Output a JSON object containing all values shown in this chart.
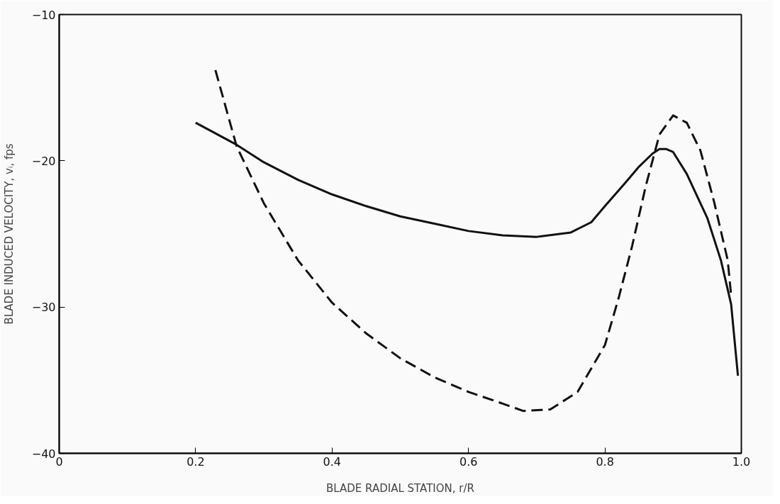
{
  "chart_data": {
    "type": "line",
    "xlabel": "BLADE RADIAL STATION, r/R",
    "ylabel": "BLADE INDUCED VELOCITY, vᵢ, fps",
    "xlim": [
      0,
      1.0
    ],
    "ylim": [
      -40,
      -10
    ],
    "xticks": [
      0,
      {
        "value": 0.2,
        "label": "0.2"
      },
      {
        "value": 0.4,
        "label": "0.4"
      },
      {
        "value": 0.6,
        "label": "0.6"
      },
      {
        "value": 0.8,
        "label": "0.8"
      },
      {
        "value": 1.0,
        "label": "1.0"
      }
    ],
    "yticks": [
      -40,
      -30,
      -20,
      -10
    ],
    "grid": false,
    "marker": "none",
    "series": [
      {
        "color": "#111111",
        "line_style": "solid",
        "x": [
          0.2,
          0.26,
          0.3,
          0.35,
          0.4,
          0.45,
          0.5,
          0.55,
          0.6,
          0.65,
          0.7,
          0.75,
          0.78,
          0.8,
          0.83,
          0.85,
          0.87,
          0.88,
          0.89,
          0.9,
          0.92,
          0.95,
          0.97,
          0.985,
          0.995
        ],
        "values": [
          -17.4,
          -18.9,
          -20.1,
          -21.3,
          -22.3,
          -23.1,
          -23.8,
          -24.3,
          -24.8,
          -25.1,
          -25.2,
          -24.9,
          -24.2,
          -23.1,
          -21.5,
          -20.4,
          -19.5,
          -19.2,
          -19.2,
          -19.4,
          -20.9,
          -23.9,
          -26.8,
          -29.8,
          -34.7
        ]
      },
      {
        "color": "#111111",
        "line_style": "dashed",
        "x": [
          0.229,
          0.26,
          0.3,
          0.35,
          0.4,
          0.45,
          0.5,
          0.55,
          0.6,
          0.65,
          0.68,
          0.72,
          0.76,
          0.8,
          0.82,
          0.84,
          0.86,
          0.88,
          0.9,
          0.92,
          0.94,
          0.96,
          0.98,
          0.985
        ],
        "values": [
          -13.8,
          -19.0,
          -22.9,
          -26.8,
          -29.7,
          -31.8,
          -33.5,
          -34.8,
          -35.8,
          -36.6,
          -37.1,
          -37.0,
          -35.8,
          -32.6,
          -29.4,
          -25.8,
          -21.7,
          -18.2,
          -16.9,
          -17.4,
          -19.3,
          -22.8,
          -26.8,
          -29.2
        ]
      }
    ]
  }
}
